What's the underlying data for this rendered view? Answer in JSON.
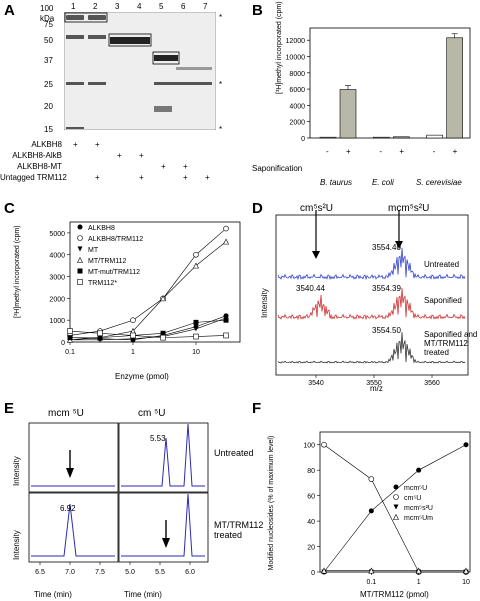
{
  "panels": {
    "a": "A",
    "b": "B",
    "c": "C",
    "d": "D",
    "e": "E",
    "f": "F"
  },
  "panelA": {
    "lanes": [
      "1",
      "2",
      "3",
      "4",
      "5",
      "6",
      "7"
    ],
    "kda": "kDa",
    "markers": [
      "100",
      "75",
      "50",
      "37",
      "25",
      "20",
      "15"
    ],
    "rows": [
      {
        "label": "ALKBH8",
        "signs": [
          "+",
          "+",
          "",
          "",
          "",
          "",
          ""
        ]
      },
      {
        "label": "ALKBH8-AlkB",
        "signs": [
          "",
          "",
          "+",
          "+",
          "",
          "",
          ""
        ]
      },
      {
        "label": "ALKBH8-MT",
        "signs": [
          "",
          "",
          "",
          "",
          "+",
          "+",
          ""
        ]
      },
      {
        "label": "Untagged TRM112",
        "signs": [
          "",
          "+",
          "",
          "+",
          "",
          "+",
          "+"
        ]
      }
    ],
    "asterisk": "*"
  },
  "panelB": {
    "ylabel": "[³H]methyl incorporated (cpm)",
    "xlabel": "Saponification",
    "groups": [
      "B. taurus",
      "E. coli",
      "S. cerevisiae"
    ],
    "signs": [
      "-",
      "+"
    ]
  },
  "panelC": {
    "ylabel": "[³H]methyl incorporated (cpm)",
    "xlabel": "Enzyme (pmol)",
    "legend": [
      "ALKBH8",
      "ALKBH8/TRM112",
      "MT",
      "MT/TRM112",
      "MT-mut/TRM112",
      "TRM112*"
    ]
  },
  "panelD": {
    "ylabel": "Intensity",
    "xlabel": "m/z",
    "arrow1": "cm⁵s²U",
    "arrow2": "mcm⁵s²U",
    "traces": [
      {
        "label": "Untreated",
        "peak": "3554.40",
        "color": "#3344cc"
      },
      {
        "label": "Saponified",
        "peak": "3554.39",
        "peak2": "3540.44",
        "color": "#d03030"
      },
      {
        "label": "Saponified and MT/TRM112 treated",
        "peak": "3554.50",
        "color": "#333333"
      }
    ],
    "xticks": [
      "3540",
      "3550",
      "3560"
    ]
  },
  "panelE": {
    "col1": "mcm ⁵U",
    "col2": "cm ⁵U",
    "ylabel": "Intensity",
    "rows": [
      "Untreated",
      "MT/TRM112 treated"
    ],
    "peak_top": "5.53",
    "peak_bottom": "6.92",
    "xlabel": "Time (min)",
    "xticks1": [
      "6.5",
      "7.0",
      "7.5"
    ],
    "xticks2": [
      "5.0",
      "5.5",
      "6.0"
    ]
  },
  "panelF": {
    "ylabel": "Modified nucleosides (% of maximum level)",
    "xlabel": "MT/TRM112 (pmol)",
    "legend": [
      "mcm⁵U",
      "cm⁵U",
      "mcm⁵s²U",
      "mcm⁵Um"
    ],
    "yticks": [
      "0",
      "20",
      "40",
      "60",
      "80",
      "100"
    ],
    "xticks": [
      "0.1",
      "1",
      "10"
    ]
  },
  "chart_data": [
    {
      "type": "bar",
      "panel": "B",
      "categories": [
        "B. taurus",
        "E. coli",
        "S. cerevisiae"
      ],
      "series": [
        {
          "name": "-",
          "values": [
            100,
            100,
            350
          ]
        },
        {
          "name": "+",
          "values": [
            5950,
            150,
            12300
          ]
        }
      ],
      "ylabel": "[³H]methyl incorporated (cpm)",
      "xlabel": "Saponification",
      "yticks": [
        "0",
        "2000",
        "4000",
        "6000",
        "8000",
        "10000",
        "12000"
      ],
      "ylim": [
        0,
        13500
      ]
    },
    {
      "type": "line",
      "panel": "C",
      "x": [
        0.1,
        0.3,
        1,
        3,
        10,
        30
      ],
      "series": [
        {
          "name": "ALKBH8",
          "values": [
            200,
            150,
            100,
            300,
            700,
            1200
          ]
        },
        {
          "name": "ALKBH8/TRM112",
          "values": [
            300,
            500,
            1000,
            2000,
            4000,
            5200
          ]
        },
        {
          "name": "MT",
          "values": [
            100,
            100,
            150,
            250,
            600,
            1100
          ]
        },
        {
          "name": "MT/TRM112",
          "values": [
            100,
            200,
            500,
            2000,
            3500,
            4600
          ]
        },
        {
          "name": "MT-mut/TRM112",
          "values": [
            200,
            200,
            300,
            400,
            900,
            1000
          ]
        },
        {
          "name": "TRM112*",
          "values": [
            500,
            400,
            300,
            200,
            250,
            300
          ]
        }
      ],
      "xlabel": "Enzyme (pmol)",
      "ylabel": "[³H]methyl incorporated (cpm)",
      "yticks": [
        "0",
        "1000",
        "2000",
        "3000",
        "4000",
        "5000"
      ],
      "xticks": [
        "0.1",
        "1",
        "10"
      ],
      "ylim": [
        0,
        5500
      ]
    },
    {
      "type": "line",
      "panel": "F",
      "x": [
        0.01,
        0.1,
        1,
        10
      ],
      "series": [
        {
          "name": "mcm⁵U",
          "values": [
            0,
            48,
            80,
            100
          ]
        },
        {
          "name": "cm⁵U",
          "values": [
            100,
            73,
            0,
            0
          ]
        },
        {
          "name": "mcm⁵s²U",
          "values": [
            0,
            0,
            0,
            0
          ]
        },
        {
          "name": "mcm⁵Um",
          "values": [
            1,
            1,
            1,
            1
          ]
        }
      ],
      "xlabel": "MT/TRM112 (pmol)",
      "ylabel": "Modified nucleosides (% of maximum level)",
      "ylim": [
        0,
        110
      ]
    }
  ]
}
